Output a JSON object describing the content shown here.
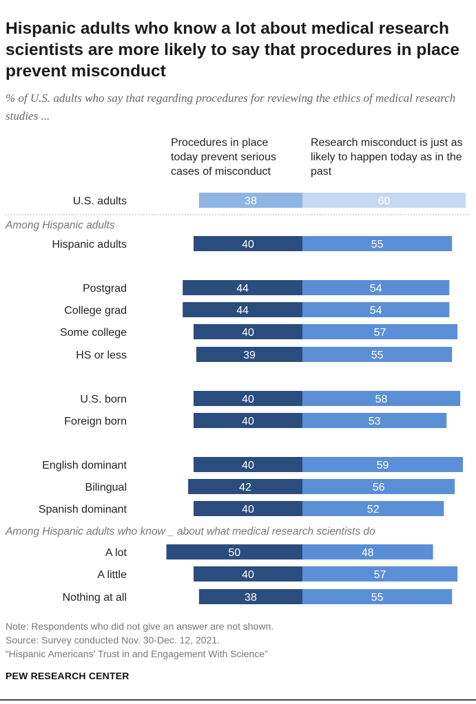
{
  "title": "Hispanic adults who know a lot about medical research scientists are more likely to say that procedures in place prevent misconduct",
  "subtitle": "% of U.S. adults who say that regarding procedures for reviewing the ethics of medical research studies ...",
  "colors": {
    "left_dark": "#2b4d7e",
    "right_dark": "#5a8fd6",
    "left_light": "#8fb5e3",
    "right_light": "#c4d9f1"
  },
  "chart_data": {
    "type": "bar",
    "orientation": "diverging-horizontal",
    "series": [
      {
        "name": "Procedures in place today prevent serious cases of misconduct"
      },
      {
        "name": "Research misconduct is just as likely to happen today as in the past"
      }
    ],
    "groups": [
      {
        "label": "",
        "rows": [
          {
            "category": "U.S. adults",
            "left": 38,
            "right": 60,
            "highlight": false
          }
        ]
      },
      {
        "label": "Among Hispanic adults",
        "rows": [
          {
            "category": "Hispanic adults",
            "left": 40,
            "right": 55
          },
          {
            "category": "Postgrad",
            "left": 44,
            "right": 54
          },
          {
            "category": "College grad",
            "left": 44,
            "right": 54
          },
          {
            "category": "Some college",
            "left": 40,
            "right": 57
          },
          {
            "category": "HS or less",
            "left": 39,
            "right": 55
          },
          {
            "category": "U.S. born",
            "left": 40,
            "right": 58
          },
          {
            "category": "Foreign born",
            "left": 40,
            "right": 53
          },
          {
            "category": "English dominant",
            "left": 40,
            "right": 59
          },
          {
            "category": "Bilingual",
            "left": 42,
            "right": 56
          },
          {
            "category": "Spanish dominant",
            "left": 40,
            "right": 52
          }
        ]
      },
      {
        "label": "Among Hispanic adults who know _ about what medical research scientists do",
        "rows": [
          {
            "category": "A lot",
            "left": 50,
            "right": 48
          },
          {
            "category": "A little",
            "left": 40,
            "right": 57
          },
          {
            "category": "Nothing at all",
            "left": 38,
            "right": 55
          }
        ]
      }
    ]
  },
  "notes": {
    "note": "Note: Respondents who did not give an answer are not shown.",
    "source": "Source: Survey conducted Nov. 30-Dec. 12, 2021.",
    "report": "“Hispanic Americans’ Trust in and Engagement With Science”"
  },
  "brand": "PEW RESEARCH CENTER"
}
